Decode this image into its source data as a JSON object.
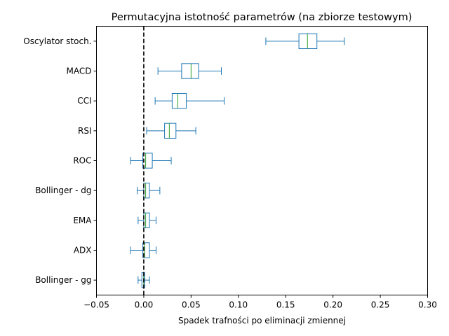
{
  "chart_data": {
    "type": "boxplot",
    "orientation": "horizontal",
    "title": "Permutacyjna istotność parametrów (na zbiorze testowym)",
    "xlabel": "Spadek trafności po eliminacji zmiennej",
    "ylabel": "",
    "xlim": [
      -0.05,
      0.3
    ],
    "xticks": [
      -0.05,
      0.0,
      0.05,
      0.1,
      0.15,
      0.2,
      0.25,
      0.3
    ],
    "xtick_labels": [
      "−0.05",
      "0.00",
      "0.05",
      "0.10",
      "0.15",
      "0.20",
      "0.25",
      "0.30"
    ],
    "reference_line": {
      "x": 0.0,
      "style": "dashed",
      "color": "#000000"
    },
    "grid": false,
    "colors": {
      "box": "#1f77b4",
      "median": "#2ca02c",
      "whisker": "#1f77b4"
    },
    "categories": [
      "Oscylator stoch.",
      "MACD",
      "CCI",
      "RSI",
      "ROC",
      "Bollinger - dg",
      "EMA",
      "ADX",
      "Bollinger - gg"
    ],
    "boxes": [
      {
        "label": "Oscylator stoch.",
        "whislo": 0.129,
        "q1": 0.164,
        "med": 0.173,
        "q3": 0.183,
        "whishi": 0.212
      },
      {
        "label": "MACD",
        "whislo": 0.015,
        "q1": 0.04,
        "med": 0.05,
        "q3": 0.058,
        "whishi": 0.082
      },
      {
        "label": "CCI",
        "whislo": 0.012,
        "q1": 0.03,
        "med": 0.036,
        "q3": 0.045,
        "whishi": 0.085
      },
      {
        "label": "RSI",
        "whislo": 0.003,
        "q1": 0.022,
        "med": 0.027,
        "q3": 0.034,
        "whishi": 0.055
      },
      {
        "label": "ROC",
        "whislo": -0.014,
        "q1": -0.001,
        "med": 0.002,
        "q3": 0.009,
        "whishi": 0.029
      },
      {
        "label": "Bollinger - dg",
        "whislo": -0.007,
        "q1": 0.0,
        "med": 0.002,
        "q3": 0.006,
        "whishi": 0.017
      },
      {
        "label": "EMA",
        "whislo": -0.006,
        "q1": 0.0,
        "med": 0.002,
        "q3": 0.006,
        "whishi": 0.013
      },
      {
        "label": "ADX",
        "whislo": -0.014,
        "q1": -0.001,
        "med": 0.001,
        "q3": 0.006,
        "whishi": 0.013
      },
      {
        "label": "Bollinger - gg",
        "whislo": -0.006,
        "q1": -0.002,
        "med": 0.0,
        "q3": 0.001,
        "whishi": 0.006
      }
    ]
  }
}
